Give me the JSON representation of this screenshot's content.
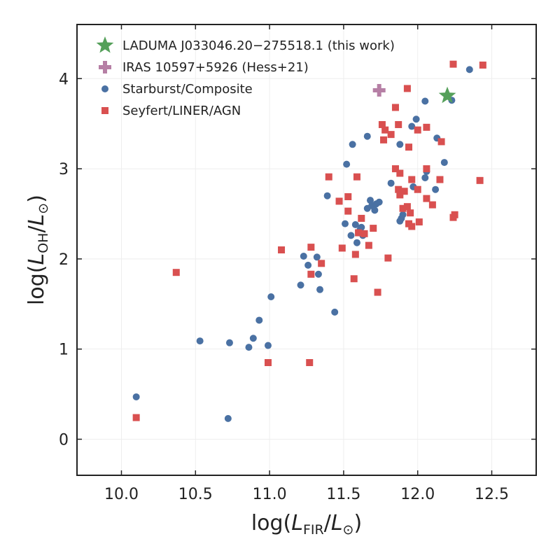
{
  "chart_data": {
    "type": "scatter",
    "title": "",
    "xlabel": {
      "prefix": "log(",
      "main": "L",
      "sub": "FIR",
      "sep": "/",
      "main2": "L",
      "sub2": "⊙",
      "suffix": ")"
    },
    "ylabel": {
      "prefix": "log(",
      "main": "L",
      "sub": "OH",
      "sep": "/",
      "main2": "L",
      "sub2": "⊙",
      "suffix": ")"
    },
    "xlim": [
      9.7,
      12.8
    ],
    "ylim": [
      -0.4,
      4.6
    ],
    "xticks": [
      10.0,
      10.5,
      11.0,
      11.5,
      12.0,
      12.5
    ],
    "xtick_labels": [
      "10.0",
      "10.5",
      "11.0",
      "11.5",
      "12.0",
      "12.5"
    ],
    "yticks": [
      0,
      1,
      2,
      3,
      4
    ],
    "ytick_labels": [
      "0",
      "1",
      "2",
      "3",
      "4"
    ],
    "grid": true,
    "legend_position": "top-left",
    "colors": {
      "this_work": "#55a05a",
      "hess": "#b67fa5",
      "starburst": "#4a71a3",
      "seyfert": "#d95050",
      "axis": "#222222",
      "grid": "#eeeeee"
    },
    "series": [
      {
        "name": "LADUMA J033046.20−275518.1 (this work)",
        "marker": "star",
        "points": [
          [
            12.2,
            3.81
          ]
        ]
      },
      {
        "name": "IRAS 10597+5926 (Hess+21)",
        "marker": "plus",
        "points": [
          [
            11.74,
            3.87
          ]
        ]
      },
      {
        "name": "Starburst/Composite",
        "marker": "circle",
        "points": [
          [
            10.1,
            0.47
          ],
          [
            10.53,
            1.09
          ],
          [
            10.72,
            0.23
          ],
          [
            10.73,
            1.07
          ],
          [
            10.86,
            1.02
          ],
          [
            10.89,
            1.12
          ],
          [
            10.93,
            1.32
          ],
          [
            10.99,
            1.04
          ],
          [
            11.01,
            1.58
          ],
          [
            11.21,
            1.71
          ],
          [
            11.23,
            2.03
          ],
          [
            11.26,
            1.93
          ],
          [
            11.32,
            2.02
          ],
          [
            11.33,
            1.83
          ],
          [
            11.34,
            1.66
          ],
          [
            11.44,
            1.41
          ],
          [
            11.39,
            2.7
          ],
          [
            11.52,
            3.05
          ],
          [
            11.56,
            3.27
          ],
          [
            11.51,
            2.39
          ],
          [
            11.55,
            2.26
          ],
          [
            11.58,
            2.38
          ],
          [
            11.59,
            2.18
          ],
          [
            11.61,
            2.32
          ],
          [
            11.62,
            2.35
          ],
          [
            11.63,
            2.26
          ],
          [
            11.66,
            3.36
          ],
          [
            11.66,
            2.56
          ],
          [
            11.68,
            2.65
          ],
          [
            11.69,
            2.59
          ],
          [
            11.71,
            2.54
          ],
          [
            11.72,
            2.61
          ],
          [
            11.74,
            2.63
          ],
          [
            11.82,
            2.84
          ],
          [
            11.88,
            3.27
          ],
          [
            11.88,
            2.42
          ],
          [
            11.89,
            2.45
          ],
          [
            11.9,
            2.49
          ],
          [
            11.96,
            3.47
          ],
          [
            11.97,
            2.8
          ],
          [
            11.99,
            3.55
          ],
          [
            12.05,
            3.75
          ],
          [
            12.05,
            2.9
          ],
          [
            12.06,
            2.97
          ],
          [
            12.12,
            2.77
          ],
          [
            12.13,
            3.34
          ],
          [
            12.18,
            3.07
          ],
          [
            12.23,
            3.76
          ],
          [
            12.35,
            4.1
          ]
        ]
      },
      {
        "name": "Seyfert/LINER/AGN",
        "marker": "square",
        "points": [
          [
            10.1,
            0.24
          ],
          [
            10.37,
            1.85
          ],
          [
            10.99,
            0.85
          ],
          [
            11.08,
            2.1
          ],
          [
            11.27,
            0.85
          ],
          [
            11.28,
            2.13
          ],
          [
            11.28,
            1.83
          ],
          [
            11.35,
            1.95
          ],
          [
            11.4,
            2.91
          ],
          [
            11.47,
            2.64
          ],
          [
            11.49,
            2.12
          ],
          [
            11.53,
            2.69
          ],
          [
            11.53,
            2.53
          ],
          [
            11.57,
            1.78
          ],
          [
            11.58,
            2.05
          ],
          [
            11.59,
            2.91
          ],
          [
            11.6,
            2.29
          ],
          [
            11.62,
            2.45
          ],
          [
            11.64,
            2.28
          ],
          [
            11.67,
            2.15
          ],
          [
            11.7,
            2.34
          ],
          [
            11.73,
            1.63
          ],
          [
            11.76,
            3.49
          ],
          [
            11.77,
            3.32
          ],
          [
            11.78,
            3.43
          ],
          [
            11.8,
            2.01
          ],
          [
            11.82,
            3.38
          ],
          [
            11.85,
            3.68
          ],
          [
            11.85,
            3.0
          ],
          [
            11.87,
            3.49
          ],
          [
            11.87,
            2.77
          ],
          [
            11.88,
            2.95
          ],
          [
            11.88,
            2.71
          ],
          [
            11.9,
            2.56
          ],
          [
            11.91,
            2.75
          ],
          [
            11.93,
            3.89
          ],
          [
            11.93,
            2.58
          ],
          [
            11.94,
            3.24
          ],
          [
            11.94,
            2.39
          ],
          [
            11.95,
            2.51
          ],
          [
            11.96,
            2.36
          ],
          [
            11.96,
            2.88
          ],
          [
            12.0,
            3.43
          ],
          [
            12.0,
            2.77
          ],
          [
            12.01,
            2.41
          ],
          [
            12.06,
            3.46
          ],
          [
            12.06,
            3.0
          ],
          [
            12.06,
            2.67
          ],
          [
            12.1,
            2.6
          ],
          [
            12.15,
            2.88
          ],
          [
            12.16,
            3.3
          ],
          [
            12.24,
            4.16
          ],
          [
            12.24,
            2.46
          ],
          [
            12.25,
            2.49
          ],
          [
            12.42,
            2.87
          ],
          [
            12.44,
            4.15
          ]
        ]
      }
    ]
  }
}
